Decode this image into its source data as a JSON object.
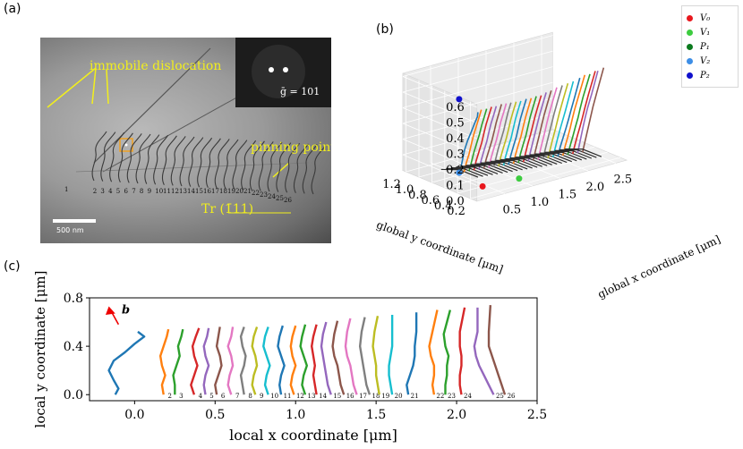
{
  "panels": {
    "a": "(a)",
    "b": "(b)",
    "c": "(c)"
  },
  "micrograph": {
    "immobile_label": "immobile dislocation",
    "pinning_label": "pinning point",
    "inset_text": "ḡ = 101",
    "trace_label": "Tr (1̄11)",
    "scale_label": "500 nm",
    "line_numbers": [
      "1",
      "2",
      "3",
      "4",
      "5",
      "6",
      "7",
      "8",
      "9",
      "10",
      "11",
      "12",
      "13",
      "14",
      "15",
      "16",
      "17",
      "18",
      "19",
      "20",
      "21",
      "22",
      "23",
      "24",
      "25",
      "26"
    ]
  },
  "legend": {
    "items": [
      {
        "name": "V₀",
        "color": "#e8171d"
      },
      {
        "name": "V₁",
        "color": "#3dcc3f"
      },
      {
        "name": "P₁",
        "color": "#0b7a1e"
      },
      {
        "name": "V₂",
        "color": "#3d8ee6"
      },
      {
        "name": "P₂",
        "color": "#1010cc"
      }
    ]
  },
  "plot3d": {
    "x_axis_label": "global x coordinate [μm]",
    "y_axis_label": "global y coordinate [μm]",
    "z_ticks": [
      "0.0",
      "0.1",
      "0.2",
      "0.3",
      "0.4",
      "0.5",
      "0.6"
    ],
    "x_ticks": [
      "0.5",
      "1.0",
      "1.5",
      "2.0",
      "2.5"
    ],
    "y_ticks": [
      "1.2",
      "1.0",
      "0.8",
      "0.6",
      "0.4",
      "0.2"
    ]
  },
  "chart_data": {
    "type": "line",
    "title": "",
    "xlabel": "local x coordinate [μm]",
    "ylabel": "local y coordinate [μm]",
    "xlim": [
      -0.28,
      2.5
    ],
    "ylim": [
      -0.05,
      0.8
    ],
    "xticks": [
      0.0,
      0.5,
      1.0,
      1.5,
      2.0,
      2.5
    ],
    "xtick_labels": [
      "0.0",
      "0.5",
      "1.0",
      "1.5",
      "2.0",
      "2.5"
    ],
    "yticks": [
      0.0,
      0.4,
      0.8
    ],
    "ytick_labels": [
      "0.0",
      "0.4",
      "0.8"
    ],
    "annotation": "b",
    "colors": [
      "#1f77b4",
      "#ff7f0e",
      "#2ca02c",
      "#d62728",
      "#9467bd",
      "#8c564b",
      "#e377c2",
      "#7f7f7f",
      "#bcbd22",
      "#17becf"
    ],
    "series": [
      {
        "name": "1",
        "points": [
          [
            -0.12,
            0.0
          ],
          [
            -0.1,
            0.05
          ],
          [
            -0.13,
            0.12
          ],
          [
            -0.16,
            0.2
          ],
          [
            -0.13,
            0.28
          ],
          [
            -0.06,
            0.35
          ],
          [
            0.0,
            0.42
          ],
          [
            0.06,
            0.48
          ],
          [
            0.02,
            0.52
          ]
        ]
      },
      {
        "name": "2",
        "points": [
          [
            0.18,
            0.0
          ],
          [
            0.17,
            0.08
          ],
          [
            0.19,
            0.16
          ],
          [
            0.17,
            0.24
          ],
          [
            0.16,
            0.32
          ],
          [
            0.18,
            0.4
          ],
          [
            0.2,
            0.48
          ],
          [
            0.21,
            0.54
          ]
        ]
      },
      {
        "name": "3",
        "points": [
          [
            0.25,
            0.0
          ],
          [
            0.25,
            0.08
          ],
          [
            0.24,
            0.16
          ],
          [
            0.26,
            0.24
          ],
          [
            0.28,
            0.32
          ],
          [
            0.27,
            0.4
          ],
          [
            0.29,
            0.48
          ],
          [
            0.3,
            0.54
          ]
        ]
      },
      {
        "name": "4",
        "points": [
          [
            0.37,
            0.0
          ],
          [
            0.35,
            0.08
          ],
          [
            0.37,
            0.16
          ],
          [
            0.39,
            0.24
          ],
          [
            0.37,
            0.32
          ],
          [
            0.36,
            0.4
          ],
          [
            0.38,
            0.48
          ],
          [
            0.4,
            0.55
          ]
        ]
      },
      {
        "name": "5",
        "points": [
          [
            0.44,
            0.0
          ],
          [
            0.43,
            0.08
          ],
          [
            0.44,
            0.16
          ],
          [
            0.46,
            0.24
          ],
          [
            0.44,
            0.32
          ],
          [
            0.43,
            0.4
          ],
          [
            0.45,
            0.48
          ],
          [
            0.46,
            0.55
          ]
        ]
      },
      {
        "name": "6",
        "points": [
          [
            0.51,
            0.0
          ],
          [
            0.5,
            0.08
          ],
          [
            0.52,
            0.16
          ],
          [
            0.54,
            0.24
          ],
          [
            0.53,
            0.32
          ],
          [
            0.51,
            0.4
          ],
          [
            0.52,
            0.48
          ],
          [
            0.53,
            0.56
          ]
        ]
      },
      {
        "name": "7",
        "points": [
          [
            0.6,
            0.0
          ],
          [
            0.58,
            0.08
          ],
          [
            0.59,
            0.16
          ],
          [
            0.61,
            0.24
          ],
          [
            0.6,
            0.32
          ],
          [
            0.58,
            0.4
          ],
          [
            0.6,
            0.48
          ],
          [
            0.61,
            0.56
          ]
        ]
      },
      {
        "name": "8",
        "points": [
          [
            0.68,
            0.0
          ],
          [
            0.67,
            0.08
          ],
          [
            0.66,
            0.16
          ],
          [
            0.68,
            0.24
          ],
          [
            0.69,
            0.32
          ],
          [
            0.67,
            0.4
          ],
          [
            0.66,
            0.48
          ],
          [
            0.68,
            0.56
          ]
        ]
      },
      {
        "name": "9",
        "points": [
          [
            0.75,
            0.0
          ],
          [
            0.73,
            0.08
          ],
          [
            0.74,
            0.16
          ],
          [
            0.76,
            0.24
          ],
          [
            0.75,
            0.32
          ],
          [
            0.73,
            0.4
          ],
          [
            0.74,
            0.48
          ],
          [
            0.76,
            0.56
          ]
        ]
      },
      {
        "name": "10",
        "points": [
          [
            0.83,
            0.0
          ],
          [
            0.81,
            0.08
          ],
          [
            0.82,
            0.16
          ],
          [
            0.84,
            0.24
          ],
          [
            0.82,
            0.32
          ],
          [
            0.8,
            0.4
          ],
          [
            0.81,
            0.48
          ],
          [
            0.83,
            0.56
          ]
        ]
      },
      {
        "name": "11",
        "points": [
          [
            0.91,
            0.0
          ],
          [
            0.9,
            0.08
          ],
          [
            0.91,
            0.16
          ],
          [
            0.93,
            0.24
          ],
          [
            0.91,
            0.32
          ],
          [
            0.89,
            0.4
          ],
          [
            0.9,
            0.48
          ],
          [
            0.92,
            0.57
          ]
        ]
      },
      {
        "name": "12",
        "points": [
          [
            0.99,
            0.0
          ],
          [
            0.97,
            0.08
          ],
          [
            0.98,
            0.16
          ],
          [
            1.0,
            0.24
          ],
          [
            0.98,
            0.32
          ],
          [
            0.97,
            0.4
          ],
          [
            0.98,
            0.48
          ],
          [
            1.0,
            0.57
          ]
        ]
      },
      {
        "name": "13",
        "points": [
          [
            1.06,
            0.0
          ],
          [
            1.04,
            0.08
          ],
          [
            1.05,
            0.16
          ],
          [
            1.07,
            0.24
          ],
          [
            1.05,
            0.32
          ],
          [
            1.03,
            0.4
          ],
          [
            1.04,
            0.48
          ],
          [
            1.06,
            0.58
          ]
        ]
      },
      {
        "name": "14",
        "points": [
          [
            1.13,
            0.0
          ],
          [
            1.12,
            0.08
          ],
          [
            1.11,
            0.16
          ],
          [
            1.12,
            0.24
          ],
          [
            1.11,
            0.32
          ],
          [
            1.1,
            0.4
          ],
          [
            1.11,
            0.48
          ],
          [
            1.13,
            0.58
          ]
        ]
      },
      {
        "name": "15",
        "points": [
          [
            1.22,
            0.0
          ],
          [
            1.2,
            0.08
          ],
          [
            1.19,
            0.16
          ],
          [
            1.18,
            0.24
          ],
          [
            1.17,
            0.32
          ],
          [
            1.16,
            0.4
          ],
          [
            1.17,
            0.5
          ],
          [
            1.19,
            0.6
          ]
        ]
      },
      {
        "name": "16",
        "points": [
          [
            1.3,
            0.0
          ],
          [
            1.28,
            0.08
          ],
          [
            1.27,
            0.16
          ],
          [
            1.26,
            0.24
          ],
          [
            1.24,
            0.32
          ],
          [
            1.23,
            0.4
          ],
          [
            1.24,
            0.5
          ],
          [
            1.26,
            0.61
          ]
        ]
      },
      {
        "name": "17",
        "points": [
          [
            1.38,
            0.0
          ],
          [
            1.36,
            0.08
          ],
          [
            1.35,
            0.16
          ],
          [
            1.34,
            0.24
          ],
          [
            1.32,
            0.32
          ],
          [
            1.31,
            0.4
          ],
          [
            1.32,
            0.52
          ],
          [
            1.34,
            0.63
          ]
        ]
      },
      {
        "name": "18",
        "points": [
          [
            1.46,
            0.0
          ],
          [
            1.44,
            0.08
          ],
          [
            1.43,
            0.16
          ],
          [
            1.42,
            0.24
          ],
          [
            1.41,
            0.32
          ],
          [
            1.4,
            0.4
          ],
          [
            1.41,
            0.52
          ],
          [
            1.43,
            0.64
          ]
        ]
      },
      {
        "name": "19",
        "points": [
          [
            1.52,
            0.0
          ],
          [
            1.51,
            0.08
          ],
          [
            1.5,
            0.16
          ],
          [
            1.5,
            0.24
          ],
          [
            1.49,
            0.32
          ],
          [
            1.48,
            0.4
          ],
          [
            1.49,
            0.52
          ],
          [
            1.51,
            0.65
          ]
        ]
      },
      {
        "name": "20",
        "points": [
          [
            1.6,
            0.0
          ],
          [
            1.59,
            0.08
          ],
          [
            1.58,
            0.16
          ],
          [
            1.58,
            0.24
          ],
          [
            1.59,
            0.32
          ],
          [
            1.6,
            0.4
          ],
          [
            1.6,
            0.52
          ],
          [
            1.6,
            0.66
          ]
        ]
      },
      {
        "name": "21",
        "points": [
          [
            1.7,
            0.0
          ],
          [
            1.69,
            0.08
          ],
          [
            1.71,
            0.16
          ],
          [
            1.73,
            0.24
          ],
          [
            1.74,
            0.32
          ],
          [
            1.74,
            0.4
          ],
          [
            1.75,
            0.52
          ],
          [
            1.75,
            0.68
          ]
        ]
      },
      {
        "name": "22",
        "points": [
          [
            1.86,
            0.0
          ],
          [
            1.85,
            0.08
          ],
          [
            1.86,
            0.16
          ],
          [
            1.86,
            0.24
          ],
          [
            1.84,
            0.32
          ],
          [
            1.83,
            0.4
          ],
          [
            1.85,
            0.52
          ],
          [
            1.88,
            0.7
          ]
        ]
      },
      {
        "name": "23",
        "points": [
          [
            1.93,
            0.0
          ],
          [
            1.93,
            0.08
          ],
          [
            1.94,
            0.16
          ],
          [
            1.94,
            0.24
          ],
          [
            1.95,
            0.32
          ],
          [
            1.93,
            0.4
          ],
          [
            1.92,
            0.5
          ],
          [
            1.96,
            0.7
          ]
        ]
      },
      {
        "name": "24",
        "points": [
          [
            2.03,
            0.0
          ],
          [
            2.02,
            0.08
          ],
          [
            2.02,
            0.16
          ],
          [
            2.03,
            0.24
          ],
          [
            2.03,
            0.32
          ],
          [
            2.02,
            0.4
          ],
          [
            2.02,
            0.52
          ],
          [
            2.05,
            0.72
          ]
        ]
      },
      {
        "name": "25",
        "points": [
          [
            2.23,
            0.0
          ],
          [
            2.2,
            0.08
          ],
          [
            2.17,
            0.16
          ],
          [
            2.14,
            0.24
          ],
          [
            2.12,
            0.32
          ],
          [
            2.11,
            0.4
          ],
          [
            2.13,
            0.52
          ],
          [
            2.13,
            0.72
          ]
        ]
      },
      {
        "name": "26",
        "points": [
          [
            2.3,
            0.0
          ],
          [
            2.28,
            0.08
          ],
          [
            2.26,
            0.16
          ],
          [
            2.24,
            0.24
          ],
          [
            2.22,
            0.32
          ],
          [
            2.2,
            0.4
          ],
          [
            2.2,
            0.52
          ],
          [
            2.21,
            0.74
          ]
        ]
      }
    ]
  }
}
